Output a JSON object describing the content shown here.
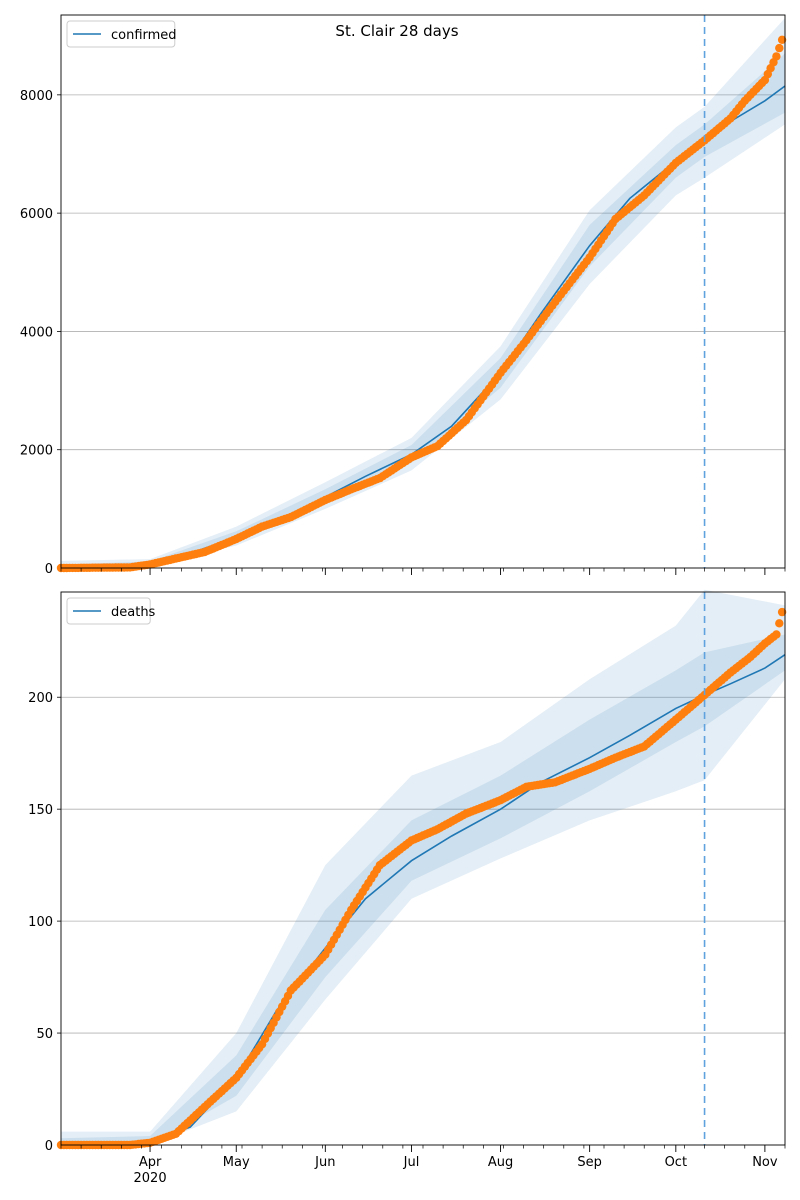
{
  "figure": {
    "title": "St. Clair 28 days"
  },
  "chart_data": [
    {
      "type": "line",
      "title": "St. Clair 28 days",
      "xlabel": "",
      "ylabel": "",
      "x_axis": {
        "type": "date",
        "range": [
          "2020-03-01",
          "2020-11-08"
        ],
        "major_ticks": [
          {
            "date": "2020-04-01",
            "label": "Apr"
          },
          {
            "date": "2020-05-01",
            "label": "May"
          },
          {
            "date": "2020-06-01",
            "label": "Jun"
          },
          {
            "date": "2020-07-01",
            "label": "Jul"
          },
          {
            "date": "2020-08-01",
            "label": "Aug"
          },
          {
            "date": "2020-09-01",
            "label": "Sep"
          },
          {
            "date": "2020-10-01",
            "label": "Oct"
          },
          {
            "date": "2020-11-01",
            "label": "Nov"
          }
        ],
        "year_label": "2020",
        "tick_labels_shown": false
      },
      "ylim": [
        0,
        9350
      ],
      "yticks": [
        0,
        2000,
        4000,
        6000,
        8000
      ],
      "grid": "horizontal",
      "legend": {
        "position": "top-left",
        "entries": [
          "confirmed"
        ]
      },
      "forecast_start": "2020-10-11",
      "series": [
        {
          "name": "confirmed",
          "kind": "model-median-line",
          "color": "#1f77b4",
          "points": [
            [
              "2020-03-01",
              0
            ],
            [
              "2020-03-20",
              20
            ],
            [
              "2020-04-01",
              80
            ],
            [
              "2020-04-15",
              250
            ],
            [
              "2020-05-01",
              520
            ],
            [
              "2020-05-15",
              800
            ],
            [
              "2020-06-01",
              1200
            ],
            [
              "2020-06-15",
              1550
            ],
            [
              "2020-07-01",
              1920
            ],
            [
              "2020-07-15",
              2400
            ],
            [
              "2020-08-01",
              3300
            ],
            [
              "2020-08-15",
              4300
            ],
            [
              "2020-09-01",
              5450
            ],
            [
              "2020-09-15",
              6250
            ],
            [
              "2020-10-01",
              6880
            ],
            [
              "2020-10-11",
              7230
            ],
            [
              "2020-10-20",
              7550
            ],
            [
              "2020-11-01",
              7900
            ],
            [
              "2020-11-08",
              8150
            ]
          ]
        },
        {
          "name": "",
          "kind": "observed-points",
          "color": "#ff7f0e",
          "points": [
            [
              "2020-03-01",
              0
            ],
            [
              "2020-03-25",
              10
            ],
            [
              "2020-04-01",
              60
            ],
            [
              "2020-04-10",
              160
            ],
            [
              "2020-04-20",
              270
            ],
            [
              "2020-05-01",
              490
            ],
            [
              "2020-05-10",
              700
            ],
            [
              "2020-05-20",
              860
            ],
            [
              "2020-06-01",
              1150
            ],
            [
              "2020-06-10",
              1330
            ],
            [
              "2020-06-20",
              1520
            ],
            [
              "2020-07-01",
              1870
            ],
            [
              "2020-07-10",
              2060
            ],
            [
              "2020-07-20",
              2500
            ],
            [
              "2020-08-01",
              3300
            ],
            [
              "2020-08-10",
              3850
            ],
            [
              "2020-08-20",
              4500
            ],
            [
              "2020-09-01",
              5250
            ],
            [
              "2020-09-10",
              5900
            ],
            [
              "2020-09-20",
              6300
            ],
            [
              "2020-10-01",
              6850
            ],
            [
              "2020-10-11",
              7230
            ],
            [
              "2020-10-20",
              7600
            ],
            [
              "2020-10-25",
              7900
            ],
            [
              "2020-11-01",
              8250
            ],
            [
              "2020-11-05",
              8650
            ],
            [
              "2020-11-07",
              8930
            ]
          ]
        }
      ],
      "uncertainty_bands": [
        {
          "color": "#1f77b4",
          "points": [
            [
              "2020-03-01",
              0,
              120
            ],
            [
              "2020-04-01",
              30,
              150
            ],
            [
              "2020-05-01",
              380,
              700
            ],
            [
              "2020-06-01",
              1000,
              1450
            ],
            [
              "2020-07-01",
              1650,
              2200
            ],
            [
              "2020-08-01",
              2850,
              3750
            ],
            [
              "2020-09-01",
              4800,
              6050
            ],
            [
              "2020-10-01",
              6300,
              7450
            ],
            [
              "2020-10-11",
              6600,
              7800
            ],
            [
              "2020-11-08",
              7500,
              9300
            ]
          ]
        },
        {
          "color": "#1f77b4",
          "points": [
            [
              "2020-03-01",
              0,
              60
            ],
            [
              "2020-04-01",
              50,
              110
            ],
            [
              "2020-05-01",
              440,
              620
            ],
            [
              "2020-06-01",
              1100,
              1330
            ],
            [
              "2020-07-01",
              1780,
              2080
            ],
            [
              "2020-08-01",
              3050,
              3550
            ],
            [
              "2020-09-01",
              5100,
              5800
            ],
            [
              "2020-10-01",
              6600,
              7150
            ],
            [
              "2020-10-11",
              6950,
              7500
            ],
            [
              "2020-11-08",
              7700,
              8700
            ]
          ]
        }
      ]
    },
    {
      "type": "line",
      "title": "",
      "xlabel": "",
      "ylabel": "",
      "x_axis": {
        "type": "date",
        "range": [
          "2020-03-01",
          "2020-11-08"
        ],
        "major_ticks": [
          {
            "date": "2020-04-01",
            "label": "Apr"
          },
          {
            "date": "2020-05-01",
            "label": "May"
          },
          {
            "date": "2020-06-01",
            "label": "Jun"
          },
          {
            "date": "2020-07-01",
            "label": "Jul"
          },
          {
            "date": "2020-08-01",
            "label": "Aug"
          },
          {
            "date": "2020-09-01",
            "label": "Sep"
          },
          {
            "date": "2020-10-01",
            "label": "Oct"
          },
          {
            "date": "2020-11-01",
            "label": "Nov"
          }
        ],
        "year_label": "2020",
        "tick_labels_shown": true
      },
      "ylim": [
        0,
        247
      ],
      "yticks": [
        0,
        50,
        100,
        150,
        200
      ],
      "grid": "horizontal",
      "legend": {
        "position": "top-left",
        "entries": [
          "deaths"
        ]
      },
      "forecast_start": "2020-10-11",
      "series": [
        {
          "name": "deaths",
          "kind": "model-median-line",
          "color": "#1f77b4",
          "points": [
            [
              "2020-03-01",
              0
            ],
            [
              "2020-04-01",
              1
            ],
            [
              "2020-04-15",
              8
            ],
            [
              "2020-05-01",
              30
            ],
            [
              "2020-05-15",
              60
            ],
            [
              "2020-06-01",
              88
            ],
            [
              "2020-06-15",
              110
            ],
            [
              "2020-07-01",
              127
            ],
            [
              "2020-07-15",
              138
            ],
            [
              "2020-08-01",
              150
            ],
            [
              "2020-08-15",
              162
            ],
            [
              "2020-09-01",
              173
            ],
            [
              "2020-09-15",
              183
            ],
            [
              "2020-10-01",
              195
            ],
            [
              "2020-10-11",
              201
            ],
            [
              "2020-10-20",
              206
            ],
            [
              "2020-11-01",
              213
            ],
            [
              "2020-11-08",
              219
            ]
          ]
        },
        {
          "name": "",
          "kind": "observed-points",
          "color": "#ff7f0e",
          "points": [
            [
              "2020-03-01",
              0
            ],
            [
              "2020-03-25",
              0
            ],
            [
              "2020-04-01",
              1
            ],
            [
              "2020-04-10",
              5
            ],
            [
              "2020-04-20",
              17
            ],
            [
              "2020-05-01",
              30
            ],
            [
              "2020-05-10",
              45
            ],
            [
              "2020-05-20",
              69
            ],
            [
              "2020-06-01",
              85
            ],
            [
              "2020-06-10",
              105
            ],
            [
              "2020-06-20",
              125
            ],
            [
              "2020-07-01",
              136
            ],
            [
              "2020-07-10",
              141
            ],
            [
              "2020-07-20",
              148
            ],
            [
              "2020-08-01",
              154
            ],
            [
              "2020-08-10",
              160
            ],
            [
              "2020-08-20",
              162
            ],
            [
              "2020-09-01",
              168
            ],
            [
              "2020-09-10",
              173
            ],
            [
              "2020-09-20",
              178
            ],
            [
              "2020-10-01",
              190
            ],
            [
              "2020-10-11",
              201
            ],
            [
              "2020-10-20",
              211
            ],
            [
              "2020-10-27",
              218
            ],
            [
              "2020-11-01",
              224
            ],
            [
              "2020-11-05",
              228
            ],
            [
              "2020-11-07",
              238
            ]
          ]
        }
      ],
      "uncertainty_bands": [
        {
          "color": "#1f77b4",
          "points": [
            [
              "2020-03-01",
              0,
              6
            ],
            [
              "2020-04-01",
              0,
              6
            ],
            [
              "2020-05-01",
              15,
              50
            ],
            [
              "2020-06-01",
              65,
              125
            ],
            [
              "2020-07-01",
              110,
              165
            ],
            [
              "2020-08-01",
              128,
              180
            ],
            [
              "2020-09-01",
              145,
              208
            ],
            [
              "2020-10-01",
              158,
              232
            ],
            [
              "2020-10-11",
              163,
              248
            ],
            [
              "2020-11-08",
              208,
              241
            ]
          ]
        },
        {
          "color": "#1f77b4",
          "points": [
            [
              "2020-03-01",
              0,
              3
            ],
            [
              "2020-04-01",
              0,
              4
            ],
            [
              "2020-05-01",
              22,
              40
            ],
            [
              "2020-06-01",
              75,
              105
            ],
            [
              "2020-07-01",
              118,
              145
            ],
            [
              "2020-08-01",
              137,
              165
            ],
            [
              "2020-09-01",
              158,
              190
            ],
            [
              "2020-10-01",
              180,
              212
            ],
            [
              "2020-10-11",
              187,
              220
            ],
            [
              "2020-11-08",
              212,
              228
            ]
          ]
        }
      ]
    }
  ]
}
